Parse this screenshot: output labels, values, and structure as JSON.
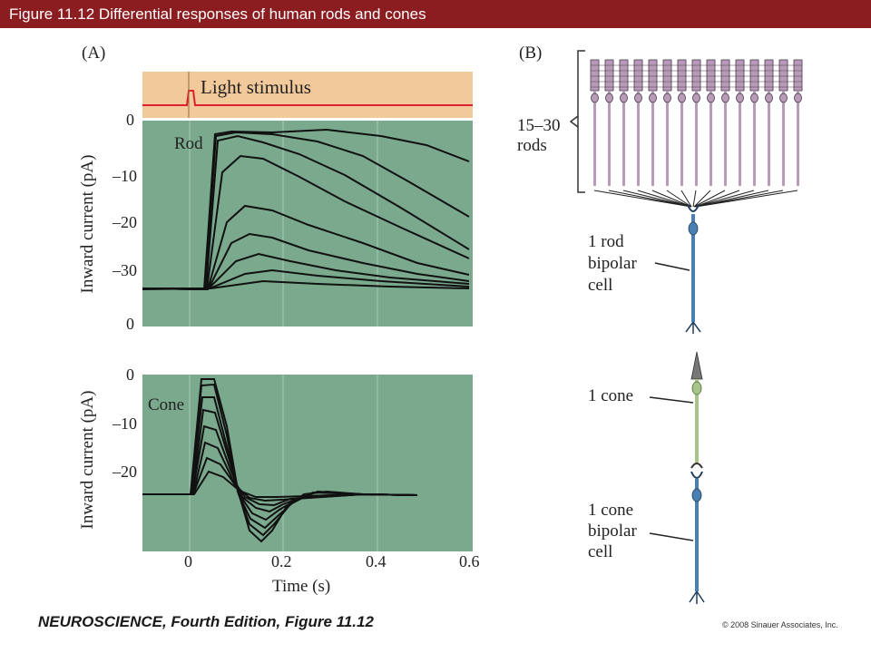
{
  "header": {
    "title": "Figure 11.12  Differential responses of human rods and cones"
  },
  "panel_a": {
    "label": "(A)",
    "stimulus_label": "Light stimulus",
    "rod_label": "Rod",
    "cone_label": "Cone",
    "ylabel": "Inward current (pA)",
    "xlabel": "Time (s)",
    "rod_yticks": [
      "0",
      "–10",
      "–20",
      "–30",
      "0"
    ],
    "cone_yticks": [
      "0",
      "–10",
      "–20"
    ],
    "xticks": [
      "0",
      "0.2",
      "0.4",
      "0.6"
    ]
  },
  "panel_b": {
    "label": "(B)",
    "rods_count_label": "15–30",
    "rods_label": "rods",
    "rod_bipolar_lines": [
      "1 rod",
      "bipolar",
      "cell"
    ],
    "cone_label": "1 cone",
    "cone_bipolar_lines": [
      "1 cone",
      "bipolar",
      "cell"
    ]
  },
  "footer": {
    "citation": "NEUROSCIENCE, Fourth Edition, Figure 11.12",
    "copyright": "© 2008 Sinauer Associates, Inc."
  },
  "colors": {
    "title_bar": "#8b1c20",
    "stimulus_bg": "#f2c99a",
    "stimulus_line": "#e0202c",
    "plot_bg": "#7aa98e",
    "grid": "#a9cbb6",
    "trace": "#111111",
    "rod_cell": "#b89bb8",
    "bipolar_cell": "#4a7fb0",
    "cone_cell": "#a8c48a"
  }
}
